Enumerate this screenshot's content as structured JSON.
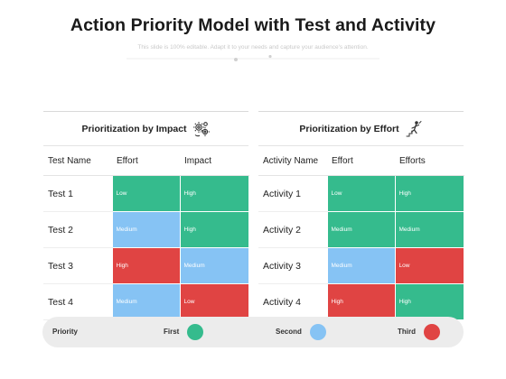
{
  "title": "Action Priority Model with Test and Activity",
  "subtitle": "This slide is 100% editable. Adapt it to your needs and capture your audience's attention.",
  "colors": {
    "green": "#35bb8d",
    "blue": "#86c3f4",
    "red": "#e04443"
  },
  "left_panel": {
    "title": "Prioritization by Impact",
    "icon": "gears-icon",
    "headers": [
      "Test Name",
      "Effort",
      "Impact"
    ],
    "rows": [
      {
        "name": "Test 1",
        "effort": "Low",
        "impact": "High"
      },
      {
        "name": "Test 2",
        "effort": "Medium",
        "impact": "High"
      },
      {
        "name": "Test 3",
        "effort": "High",
        "impact": "Medium"
      },
      {
        "name": "Test 4",
        "effort": "Medium",
        "impact": "Low"
      }
    ]
  },
  "right_panel": {
    "title": "Prioritization by Effort",
    "icon": "climbing-person-icon",
    "headers": [
      "Activity Name",
      "Effort",
      "Efforts"
    ],
    "rows": [
      {
        "name": "Activity 1",
        "effort": "Low",
        "efforts": "High"
      },
      {
        "name": "Activity 2",
        "effort": "Medium",
        "efforts": "Medium"
      },
      {
        "name": "Activity 3",
        "effort": "Medium",
        "efforts": "Low"
      },
      {
        "name": "Activity 4",
        "effort": "High",
        "efforts": "High"
      }
    ]
  },
  "legend": {
    "label": "Priority",
    "items": [
      {
        "label": "First",
        "color": "#35bb8d"
      },
      {
        "label": "Second",
        "color": "#86c3f4"
      },
      {
        "label": "Third",
        "color": "#e04443"
      }
    ]
  }
}
